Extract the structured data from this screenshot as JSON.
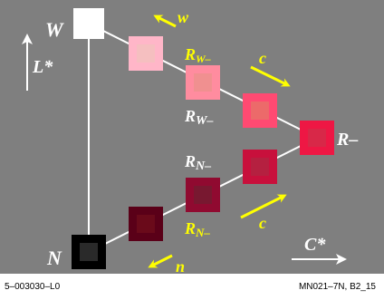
{
  "diagram": {
    "colors": {
      "background": "#7f7f7f",
      "lines": "#ffffff",
      "arrows": "#ffff00",
      "white_patch": "#ffffff",
      "black_patch": "#000000",
      "red_patch": "#ee1744"
    },
    "corners": {
      "white": "W",
      "black": "N",
      "red": "R–"
    },
    "axes": {
      "lightness": "L*",
      "chroma": "C*"
    },
    "arrow_labels": {
      "w": "w",
      "c_upper": "c",
      "c_lower": "c",
      "n": "n"
    },
    "row_labels": {
      "rw_yellow_main": "R",
      "rw_yellow_sub": "W–",
      "rw_white_main": "R",
      "rw_white_sub": "W–",
      "rn_white_main": "R",
      "rn_white_sub": "N–",
      "rn_yellow_main": "R",
      "rn_yellow_sub": "N–"
    },
    "upper_patches": [
      {
        "name": "upper-patch-1",
        "outer": "#ffb6c8",
        "inner": "#f5bfc0"
      },
      {
        "name": "upper-patch-2",
        "outer": "#ff8c9f",
        "inner": "#f09090"
      },
      {
        "name": "upper-patch-3",
        "outer": "#ff4a72",
        "inner": "#ec6a6a"
      }
    ],
    "lower_patches": [
      {
        "name": "lower-patch-1",
        "outer": "#c8103c",
        "inner": "#b52040"
      },
      {
        "name": "lower-patch-2",
        "outer": "#900a30",
        "inner": "#781830"
      },
      {
        "name": "lower-patch-3",
        "outer": "#5a0018",
        "inner": "#6a0a1a"
      }
    ],
    "red_inner": "#d82848",
    "black_inner": "#2a2a2a"
  },
  "footer": {
    "left": "5–003030–L0",
    "right": "MN021–7N, B2_15"
  }
}
